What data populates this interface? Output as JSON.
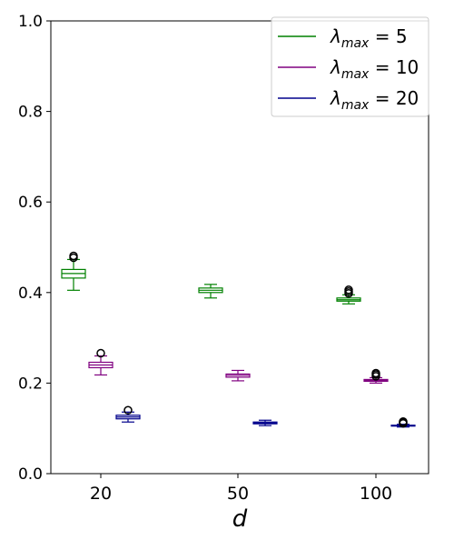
{
  "chart_data": {
    "type": "box",
    "title": "",
    "xlabel": "d",
    "ylabel": "",
    "categories": [
      "20",
      "50",
      "100"
    ],
    "ylim": [
      0.0,
      1.0
    ],
    "yticks": [
      "0.0",
      "0.2",
      "0.4",
      "0.6",
      "0.8",
      "1.0"
    ],
    "grid": false,
    "legend_position": "top-right",
    "series": [
      {
        "name": "λmax=5",
        "legend": {
          "lambda": "λ",
          "sub": "max",
          "eq": " = 5"
        },
        "color": "#008000",
        "boxes": [
          {
            "whisker_low": 0.405,
            "q1": 0.432,
            "median": 0.442,
            "q3": 0.451,
            "whisker_high": 0.473,
            "outliers": [
              0.477,
              0.481
            ]
          },
          {
            "whisker_low": 0.388,
            "q1": 0.4,
            "median": 0.405,
            "q3": 0.41,
            "whisker_high": 0.418,
            "outliers": []
          },
          {
            "whisker_low": 0.375,
            "q1": 0.381,
            "median": 0.384,
            "q3": 0.388,
            "whisker_high": 0.395,
            "outliers": [
              0.398,
              0.402,
              0.406
            ]
          }
        ]
      },
      {
        "name": "λmax=10",
        "legend": {
          "lambda": "λ",
          "sub": "max",
          "eq": " = 10"
        },
        "color": "#800080",
        "boxes": [
          {
            "whisker_low": 0.218,
            "q1": 0.234,
            "median": 0.24,
            "q3": 0.246,
            "whisker_high": 0.26,
            "outliers": [
              0.266
            ]
          },
          {
            "whisker_low": 0.205,
            "q1": 0.213,
            "median": 0.217,
            "q3": 0.22,
            "whisker_high": 0.228,
            "outliers": []
          },
          {
            "whisker_low": 0.2,
            "q1": 0.204,
            "median": 0.206,
            "q3": 0.208,
            "whisker_high": 0.212,
            "outliers": [
              0.215,
              0.219,
              0.222
            ]
          }
        ]
      },
      {
        "name": "λmax=20",
        "legend": {
          "lambda": "λ",
          "sub": "max",
          "eq": " = 20"
        },
        "color": "#00008b",
        "boxes": [
          {
            "whisker_low": 0.114,
            "q1": 0.121,
            "median": 0.125,
            "q3": 0.129,
            "whisker_high": 0.136,
            "outliers": [
              0.14
            ]
          },
          {
            "whisker_low": 0.106,
            "q1": 0.11,
            "median": 0.112,
            "q3": 0.114,
            "whisker_high": 0.118,
            "outliers": []
          },
          {
            "whisker_low": 0.103,
            "q1": 0.105,
            "median": 0.106,
            "q3": 0.107,
            "whisker_high": 0.109,
            "outliers": [
              0.111,
              0.113,
              0.115
            ]
          }
        ]
      }
    ]
  }
}
